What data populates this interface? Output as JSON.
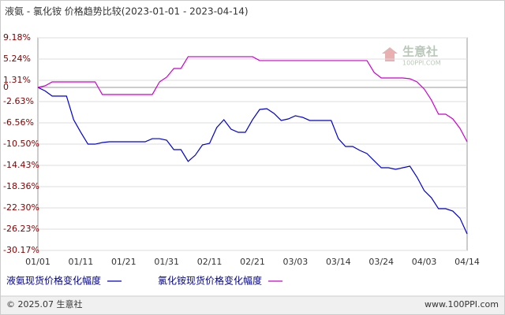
{
  "chart_data": {
    "type": "line",
    "title": "液氨 - 氯化铵 价格趋势比较(2023-01-01 - 2023-04-14)",
    "categories": [
      "01/01",
      null,
      null,
      null,
      null,
      null,
      "01/11",
      null,
      null,
      null,
      null,
      null,
      "01/21",
      null,
      null,
      null,
      null,
      null,
      "01/31",
      null,
      null,
      null,
      null,
      null,
      "02/11",
      null,
      null,
      null,
      null,
      null,
      "02/21",
      null,
      null,
      null,
      null,
      null,
      "03/03",
      null,
      null,
      null,
      null,
      null,
      "03/14",
      null,
      null,
      null,
      null,
      null,
      "03/24",
      null,
      null,
      null,
      null,
      null,
      "04/03",
      null,
      null,
      null,
      null,
      null,
      "04/14"
    ],
    "series": [
      {
        "name": "液氨现货价格变化幅度",
        "color": "#0000cc",
        "values": [
          0,
          -0.64,
          -1.6,
          -1.6,
          -1.6,
          -5.98,
          -8.31,
          -10.5,
          -10.5,
          -10.2,
          -10.06,
          -10.06,
          -10.06,
          -10.06,
          -10.06,
          -10.06,
          -9.48,
          -9.48,
          -9.77,
          -11.52,
          -11.52,
          -13.7,
          -12.54,
          -10.64,
          -10.35,
          -7.43,
          -5.98,
          -7.73,
          -8.31,
          -8.31,
          -5.98,
          -4.08,
          -3.94,
          -4.81,
          -6.12,
          -5.83,
          -5.25,
          -5.54,
          -6.12,
          -6.12,
          -6.12,
          -6.12,
          -9.48,
          -10.93,
          -10.93,
          -11.66,
          -12.24,
          -13.56,
          -14.87,
          -14.87,
          -15.16,
          -14.87,
          -14.58,
          -16.62,
          -19.1,
          -20.41,
          -22.45,
          -22.45,
          -22.89,
          -24.2,
          -27.11
        ]
      },
      {
        "name": "氯化铵现货价格变化幅度",
        "color": "#cc00cc",
        "values": [
          0,
          0.29,
          1.02,
          1.02,
          1.02,
          1.02,
          1.02,
          1.02,
          1.02,
          -1.31,
          -1.31,
          -1.31,
          -1.31,
          -1.31,
          -1.31,
          -1.31,
          -1.31,
          1.02,
          1.9,
          3.5,
          3.5,
          5.69,
          5.69,
          5.69,
          5.69,
          5.69,
          5.69,
          5.69,
          5.69,
          5.69,
          5.69,
          4.96,
          4.96,
          4.96,
          4.96,
          4.96,
          4.96,
          4.96,
          4.96,
          4.96,
          4.96,
          4.96,
          4.96,
          4.96,
          4.96,
          4.96,
          4.96,
          2.77,
          1.75,
          1.75,
          1.75,
          1.75,
          1.6,
          1.02,
          -0.29,
          -2.33,
          -4.96,
          -4.96,
          -5.83,
          -7.58,
          -10.06
        ]
      }
    ],
    "ylim": [
      -30.17,
      9.18
    ],
    "yticks": [
      {
        "value": 9.18,
        "label": "9.18%"
      },
      {
        "value": 5.24,
        "label": "5.24%"
      },
      {
        "value": 1.31,
        "label": "1.31%"
      },
      0,
      {
        "value": -2.63,
        "label": "-2.63%"
      },
      {
        "value": -6.56,
        "label": "-6.56%"
      },
      {
        "value": -10.5,
        "label": "-10.50%"
      },
      {
        "value": -14.43,
        "label": "-14.43%"
      },
      {
        "value": -18.36,
        "label": "-18.36%"
      },
      {
        "value": -22.3,
        "label": "-22.30%"
      },
      {
        "value": -26.23,
        "label": "-26.23%"
      },
      {
        "value": -30.17,
        "label": "-30.17%"
      }
    ],
    "grid": true,
    "legend": "bottom"
  },
  "watermark": {
    "name": "生意社",
    "site": "100PPI.COM"
  },
  "footer": {
    "copyright": "© 2025.07 生意社",
    "site": "www.100PPI.com"
  }
}
